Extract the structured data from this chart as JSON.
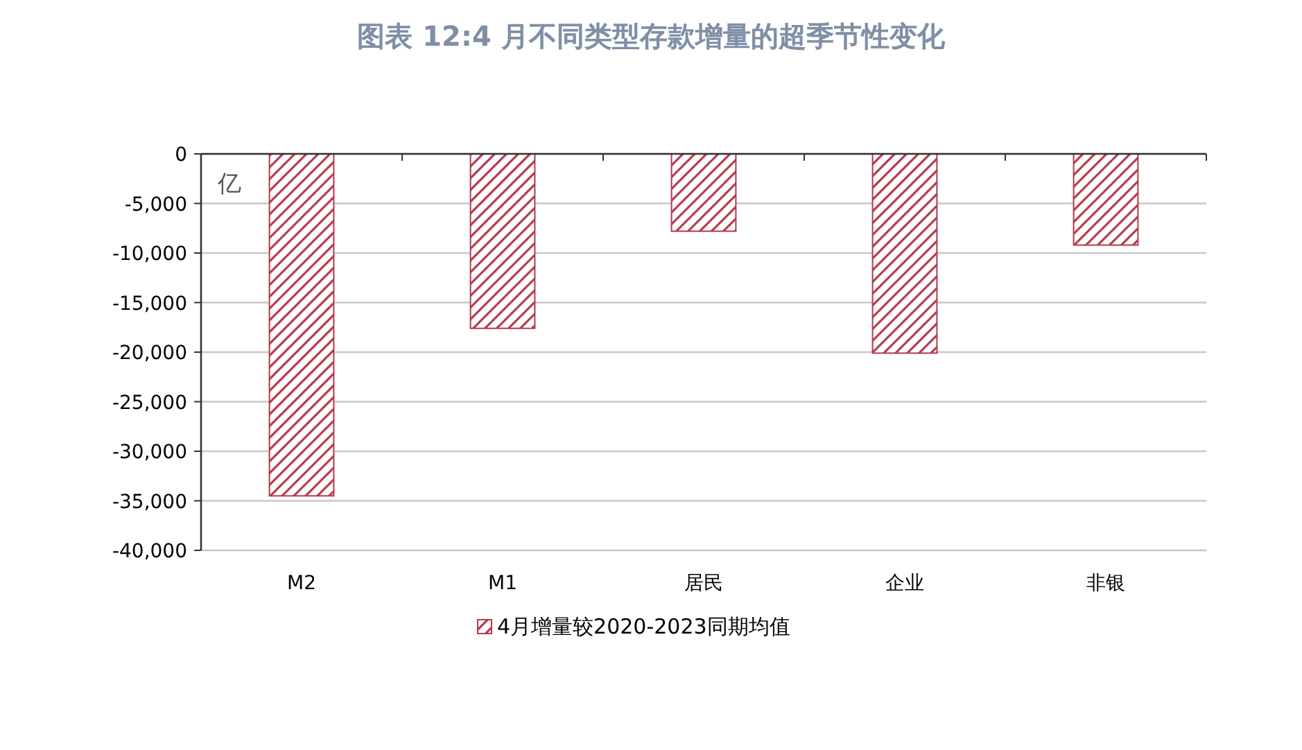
{
  "chart_data": {
    "type": "bar",
    "title": "图表 12:4 月不同类型存款增量的超季节性变化",
    "ylabel": "亿",
    "categories": [
      "M2",
      "M1",
      "居民",
      "企业",
      "非银"
    ],
    "series": [
      {
        "name": "4月增量较2020-2023同期均值",
        "color": "#b5394b",
        "values": [
          -34500,
          -17600,
          -7800,
          -20100,
          -9200
        ]
      }
    ],
    "ylim": [
      -40000,
      0
    ],
    "yticks": [
      {
        "value": 0,
        "label": "0"
      },
      {
        "value": -5000,
        "label": "-5,000"
      },
      {
        "value": -10000,
        "label": "-10,000"
      },
      {
        "value": -15000,
        "label": "-15,000"
      },
      {
        "value": -20000,
        "label": "-20,000"
      },
      {
        "value": -25000,
        "label": "-25,000"
      },
      {
        "value": -30000,
        "label": "-30,000"
      },
      {
        "value": -35000,
        "label": "-35,000"
      },
      {
        "value": -40000,
        "label": "-40,000"
      }
    ],
    "grid": "y",
    "legend": "bottom"
  }
}
